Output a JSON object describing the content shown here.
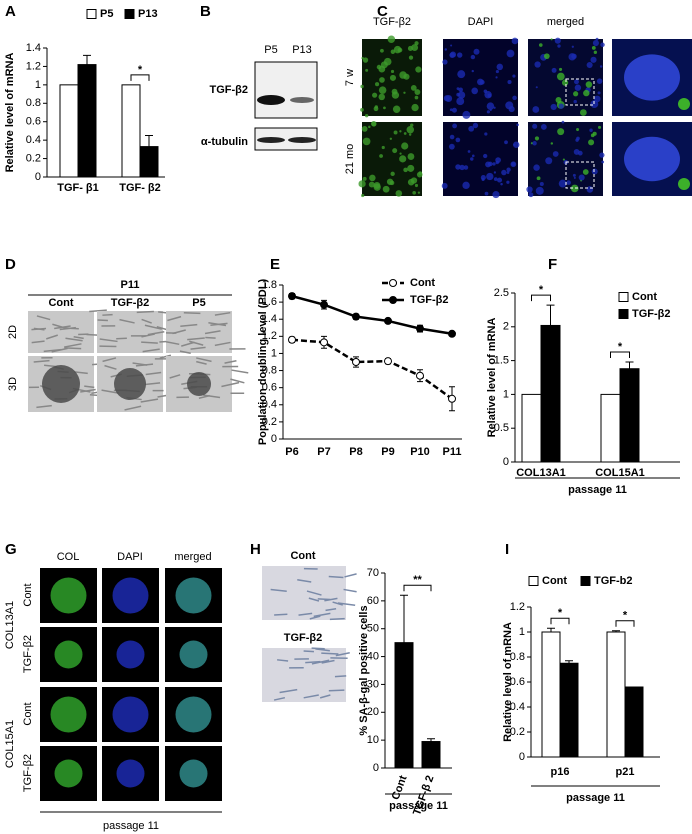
{
  "figure": {
    "panel_labels": [
      "A",
      "B",
      "C",
      "D",
      "E",
      "F",
      "G",
      "H",
      "I"
    ],
    "blot": {
      "lanes": [
        "P5",
        "P13"
      ],
      "bands": [
        "TGF-β2",
        "α-tubulin"
      ]
    },
    "staining": {
      "columns": [
        "TGF-β2",
        "DAPI",
        "merged"
      ],
      "rows": [
        "7 w",
        "21 mo"
      ]
    },
    "culture": {
      "group": "P11",
      "columns": [
        "Cont",
        "TGF-β2",
        "P5"
      ],
      "rows": [
        "2D",
        "3D"
      ]
    },
    "colony": {
      "columns": [
        "COL",
        "DAPI",
        "merged"
      ],
      "genes": [
        "COL13A1",
        "COL15A1"
      ],
      "rows": [
        "Cont",
        "TGF-β2",
        "Cont",
        "TGF-β2"
      ],
      "footer": "passage 11"
    },
    "sa_gal": {
      "images": [
        "Cont",
        "TGF-β2"
      ]
    }
  },
  "chart_data": [
    {
      "type": "bar",
      "y_label": "Relative level of mRNA",
      "categories": [
        "TGF- β1",
        "TGF- β2"
      ],
      "series": [
        {
          "name": "P5",
          "color": "#ffffff",
          "values": [
            1,
            1
          ]
        },
        {
          "name": "P13",
          "color": "#000000",
          "values": [
            1.22,
            0.33
          ],
          "errors": [
            0.1,
            0.12
          ]
        }
      ],
      "ylim": [
        0,
        1.4
      ],
      "yticks": [
        0,
        0.2,
        0.4,
        0.6,
        0.8,
        1,
        1.2,
        1.4
      ],
      "annotations": [
        "*"
      ]
    },
    {
      "type": "line",
      "y_label": "Population doubling level (PDL)",
      "categories": [
        "P6",
        "P7",
        "P8",
        "P9",
        "P10",
        "P11"
      ],
      "series": [
        {
          "name": "Cont",
          "color": "#000000",
          "line_style": "dashed",
          "marker": "open",
          "values": [
            1.16,
            1.13,
            0.9,
            0.91,
            0.74,
            0.47
          ],
          "errors": [
            0.03,
            0.07,
            0.06,
            0.03,
            0.07,
            0.14
          ]
        },
        {
          "name": "TGF-β2",
          "color": "#000000",
          "line_style": "solid",
          "marker": "filled",
          "values": [
            1.67,
            1.57,
            1.43,
            1.38,
            1.29,
            1.23
          ],
          "errors": [
            0.03,
            0.05,
            0.03,
            0.02,
            0.04,
            0.02
          ]
        }
      ],
      "ylim": [
        0,
        1.8
      ],
      "yticks": [
        0,
        0.2,
        0.4,
        0.6,
        0.8,
        1,
        1.2,
        1.4,
        1.6,
        1.8
      ]
    },
    {
      "type": "bar",
      "y_label": "Relative level of mRNA",
      "x_label": "passage 11",
      "categories": [
        "COL13A1",
        "COL15A1"
      ],
      "series": [
        {
          "name": "Cont",
          "color": "#ffffff",
          "values": [
            1,
            1
          ]
        },
        {
          "name": "TGF-β2",
          "color": "#000000",
          "values": [
            2.02,
            1.38
          ],
          "errors": [
            0.3,
            0.1
          ]
        }
      ],
      "ylim": [
        0,
        2.5
      ],
      "yticks": [
        0,
        0.5,
        1,
        1.5,
        2,
        2.5
      ],
      "annotations": [
        "*",
        "*"
      ]
    },
    {
      "type": "bar",
      "y_label": "% SA-β-gal positive cells",
      "x_label": "passage 11",
      "categories": [
        "Cont",
        "TGF-β 2"
      ],
      "series": [
        {
          "color": "#000000",
          "values": [
            45,
            9.5
          ],
          "errors": [
            17,
            1
          ]
        }
      ],
      "ylim": [
        0,
        70
      ],
      "yticks": [
        0,
        10,
        20,
        30,
        40,
        50,
        60,
        70
      ],
      "annotations": [
        "**"
      ]
    },
    {
      "type": "bar",
      "y_label": "Relative level of mRNA",
      "x_label": "passage 11",
      "categories": [
        "p16",
        "p21"
      ],
      "series": [
        {
          "name": "Cont",
          "color": "#ffffff",
          "values": [
            1,
            1
          ],
          "errors": [
            0.03,
            0.01
          ]
        },
        {
          "name": "TGF-b2",
          "color": "#000000",
          "values": [
            0.75,
            0.56
          ],
          "errors": [
            0.02,
            0
          ]
        }
      ],
      "ylim": [
        0,
        1.2
      ],
      "yticks": [
        0,
        0.2,
        0.4,
        0.6,
        0.8,
        1,
        1.2
      ],
      "annotations": [
        "*",
        "*"
      ]
    }
  ]
}
